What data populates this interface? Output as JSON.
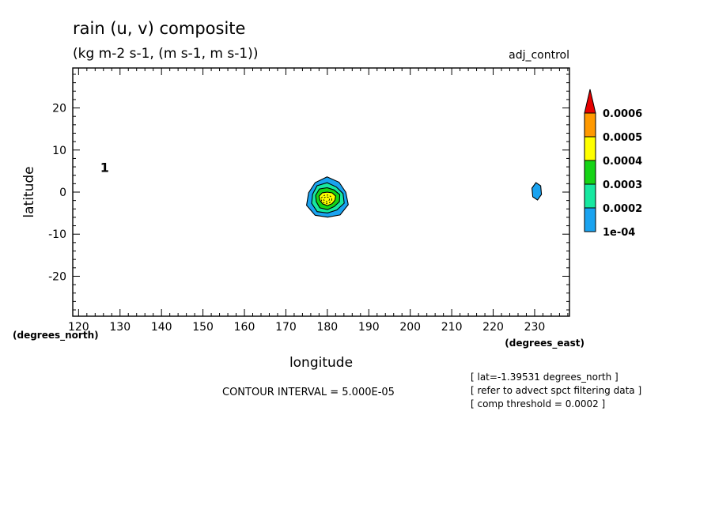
{
  "header": {
    "title": "rain (u, v) composite",
    "units": "(kg m-2 s-1, (m s-1, m s-1))",
    "dataset": "adj_control"
  },
  "footer": {
    "contour_interval": "CONTOUR INTERVAL = 5.000E-05",
    "notes": [
      "[ lat=-1.39531 degrees_north ]",
      "[ refer to advect spct filtering data ]",
      "[ comp threshold = 0.0002 ]"
    ]
  },
  "chart_data": {
    "type": "heatmap",
    "title": "rain (u, v) composite",
    "subtitle": "(kg m-2 s-1, (m s-1, m s-1))",
    "xlabel": "longitude",
    "ylabel": "latitude",
    "x_units": "(degrees_east)",
    "y_units": "(degrees_north)",
    "xlim": [
      118.6,
      238.4
    ],
    "ylim": [
      -29.5,
      29.5
    ],
    "x_ticks": [
      120,
      130,
      140,
      150,
      160,
      170,
      180,
      190,
      200,
      210,
      220,
      230
    ],
    "y_ticks": [
      20,
      10,
      0,
      -10,
      -20
    ],
    "grid": false,
    "vector_reference_label": "1",
    "colorbar": {
      "levels": [
        "1e-04",
        "0.0002",
        "0.0003",
        "0.0004",
        "0.0005",
        "0.0006"
      ],
      "colors": [
        "#1aa3f0",
        "#17e8a0",
        "#16d416",
        "#ffff00",
        "#ff9900",
        "#e60000"
      ]
    },
    "features": [
      {
        "name": "central-blob",
        "lon": 180,
        "lat": -1.5,
        "max_level_index": 3
      },
      {
        "name": "east-blob",
        "lon": 230.5,
        "lat": 0,
        "max_level_index": 0
      }
    ]
  }
}
